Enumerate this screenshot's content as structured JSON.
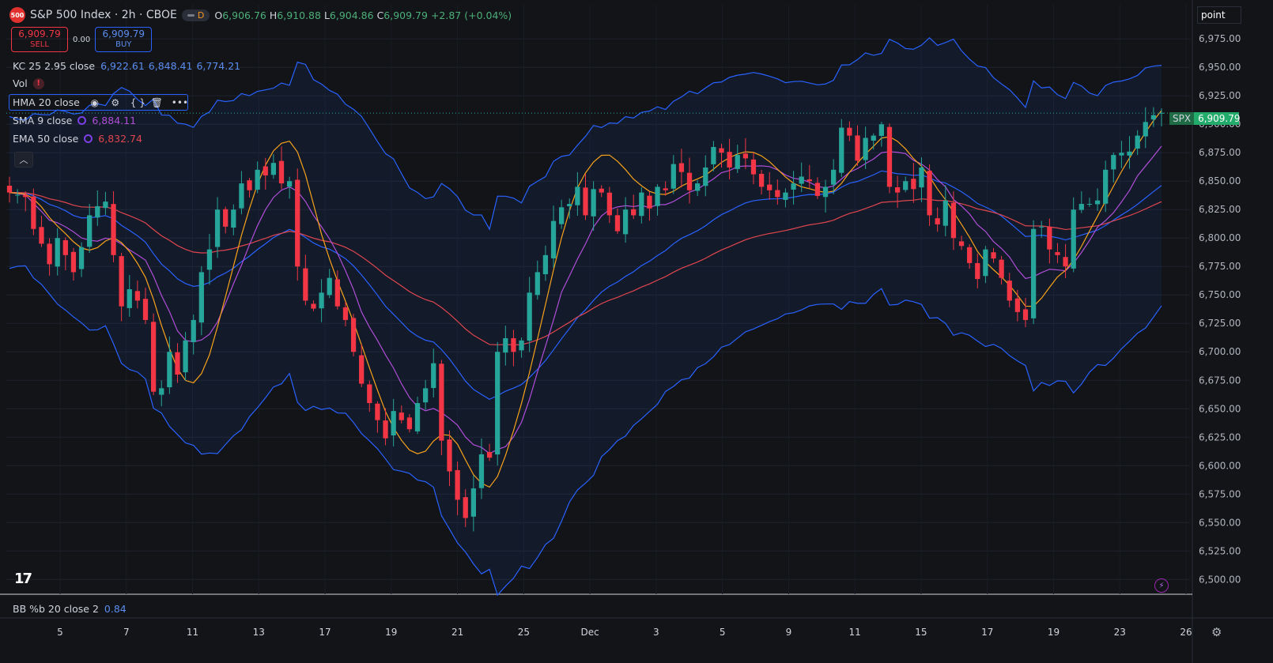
{
  "header": {
    "logo_text": "500",
    "title": "S&P 500 Index · 2h · CBOE",
    "interval_badge": "D",
    "ohlc": [
      {
        "label": "O",
        "value": "6,906.76"
      },
      {
        "label": "H",
        "value": "6,910.88"
      },
      {
        "label": "L",
        "value": "6,904.86"
      },
      {
        "label": "C",
        "value": "6,909.79"
      }
    ],
    "change": "+2.87 (+0.04%)"
  },
  "trade": {
    "sell_price": "6,909.79",
    "sell_label": "SELL",
    "spread": "0.00",
    "buy_price": "6,909.79",
    "buy_label": "BUY"
  },
  "indicators": {
    "kc": {
      "label": "KC 25 2.95 close",
      "v1": "6,922.61",
      "v2": "6,848.41",
      "v3": "6,774.21"
    },
    "vol": {
      "label": "Vol",
      "warn": "!"
    },
    "hma": {
      "label": "HMA 20 close"
    },
    "sma": {
      "label": "SMA 9 close",
      "value": "6,884.11"
    },
    "ema": {
      "label": "EMA 50 close",
      "value": "6,832.74"
    },
    "bb": {
      "label": "BB %b 20 close 2",
      "value": "0.84"
    }
  },
  "scale_mode": "point",
  "price_tag": {
    "symbol": "SPX",
    "value": "6,909.79"
  },
  "icons": [
    "eye-icon",
    "settings-icon",
    "braces-icon",
    "trash-icon",
    "more-icon",
    "chevron-up-icon",
    "lightning-icon",
    "gear-icon",
    "tradingview-logo"
  ],
  "colors": {
    "up": "#26a69a",
    "down": "#f23645",
    "kc": "#2962ff",
    "hma": "#f7a21b",
    "sma": "#b04ed8",
    "ema": "#e0464f",
    "background": "#121418"
  },
  "chart_data": {
    "type": "candlestick",
    "y_ticks": [
      "6,500.00",
      "6,525.00",
      "6,550.00",
      "6,575.00",
      "6,600.00",
      "6,625.00",
      "6,650.00",
      "6,675.00",
      "6,700.00",
      "6,725.00",
      "6,750.00",
      "6,775.00",
      "6,800.00",
      "6,825.00",
      "6,850.00",
      "6,875.00",
      "6,900.00",
      "6,925.00",
      "6,950.00",
      "6,975.00"
    ],
    "ylim": [
      6487,
      7005
    ],
    "x_ticks": [
      "5",
      "7",
      "11",
      "13",
      "17",
      "19",
      "21",
      "25",
      "Dec",
      "3",
      "5",
      "9",
      "11",
      "15",
      "17",
      "19",
      "23",
      "26"
    ],
    "last_price": 6909.79,
    "closes": [
      6840,
      6838,
      6836,
      6808,
      6795,
      6777,
      6800,
      6785,
      6770,
      6792,
      6820,
      6828,
      6832,
      6785,
      6740,
      6755,
      6745,
      6728,
      6665,
      6668,
      6700,
      6680,
      6710,
      6728,
      6770,
      6790,
      6825,
      6810,
      6825,
      6848,
      6842,
      6860,
      6855,
      6866,
      6848,
      6850,
      6775,
      6745,
      6738,
      6752,
      6765,
      6740,
      6728,
      6700,
      6672,
      6655,
      6640,
      6624,
      6648,
      6640,
      6632,
      6655,
      6668,
      6690,
      6622,
      6595,
      6570,
      6554,
      6580,
      6610,
      6607,
      6700,
      6712,
      6700,
      6710,
      6752,
      6770,
      6785,
      6815,
      6827,
      6830,
      6845,
      6820,
      6843,
      6840,
      6820,
      6806,
      6825,
      6820,
      6840,
      6826,
      6845,
      6842,
      6865,
      6858,
      6842,
      6848,
      6862,
      6880,
      6875,
      6862,
      6873,
      6870,
      6856,
      6845,
      6842,
      6836,
      6840,
      6848,
      6854,
      6850,
      6837,
      6845,
      6860,
      6897,
      6890,
      6868,
      6888,
      6890,
      6900,
      6845,
      6840,
      6850,
      6843,
      6862,
      6820,
      6812,
      6833,
      6800,
      6793,
      6778,
      6764,
      6790,
      6782,
      6765,
      6745,
      6735,
      6728,
      6808,
      6810,
      6790,
      6785,
      6775,
      6825,
      6830,
      6830,
      6833,
      6860,
      6873,
      6875,
      6876,
      6890,
      6902,
      6908,
      6910
    ]
  }
}
